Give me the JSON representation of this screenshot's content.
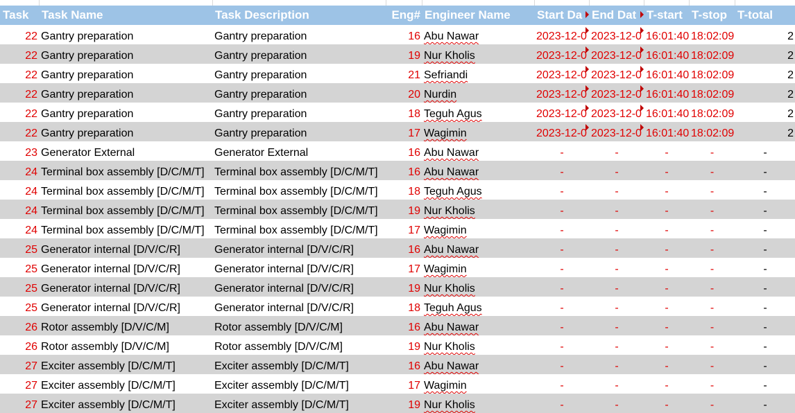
{
  "columns": [
    "Task",
    "Task Name",
    "Task Description",
    "Eng#",
    "Engineer Name",
    "Start Da",
    "End Dat",
    "T-start",
    "T-stop",
    "T-total"
  ],
  "rows": [
    [
      "22",
      "Gantry preparation",
      "Gantry preparation",
      "16",
      "Abu Nawar",
      "2023-12-0",
      "2023-12-0",
      "16:01:40",
      "18:02:09",
      "2"
    ],
    [
      "22",
      "Gantry preparation",
      "Gantry preparation",
      "19",
      "Nur Kholis",
      "2023-12-0",
      "2023-12-0",
      "16:01:40",
      "18:02:09",
      "2"
    ],
    [
      "22",
      "Gantry preparation",
      "Gantry preparation",
      "21",
      "Sefriandi",
      "2023-12-0",
      "2023-12-0",
      "16:01:40",
      "18:02:09",
      "2"
    ],
    [
      "22",
      "Gantry preparation",
      "Gantry preparation",
      "20",
      "Nurdin",
      "2023-12-0",
      "2023-12-0",
      "16:01:40",
      "18:02:09",
      "2"
    ],
    [
      "22",
      "Gantry preparation",
      "Gantry preparation",
      "18",
      "Teguh Agus",
      "2023-12-0",
      "2023-12-0",
      "16:01:40",
      "18:02:09",
      "2"
    ],
    [
      "22",
      "Gantry preparation",
      "Gantry preparation",
      "17",
      "Wagimin",
      "2023-12-0",
      "2023-12-0",
      "16:01:40",
      "18:02:09",
      "2"
    ],
    [
      "23",
      "Generator External",
      "Generator External",
      "16",
      "Abu Nawar",
      "-",
      "-",
      "-",
      "-",
      "-"
    ],
    [
      "24",
      "Terminal box assembly [D/C/M/T]",
      "Terminal box assembly [D/C/M/T]",
      "16",
      "Abu Nawar",
      "-",
      "-",
      "-",
      "-",
      "-"
    ],
    [
      "24",
      "Terminal box assembly [D/C/M/T]",
      "Terminal box assembly [D/C/M/T]",
      "18",
      "Teguh Agus",
      "-",
      "-",
      "-",
      "-",
      "-"
    ],
    [
      "24",
      "Terminal box assembly [D/C/M/T]",
      "Terminal box assembly [D/C/M/T]",
      "19",
      "Nur Kholis",
      "-",
      "-",
      "-",
      "-",
      "-"
    ],
    [
      "24",
      "Terminal box assembly [D/C/M/T]",
      "Terminal box assembly [D/C/M/T]",
      "17",
      "Wagimin",
      "-",
      "-",
      "-",
      "-",
      "-"
    ],
    [
      "25",
      "Generator internal [D/V/C/R]",
      "Generator internal [D/V/C/R]",
      "16",
      "Abu Nawar",
      "-",
      "-",
      "-",
      "-",
      "-"
    ],
    [
      "25",
      "Generator internal [D/V/C/R]",
      "Generator internal [D/V/C/R]",
      "17",
      "Wagimin",
      "-",
      "-",
      "-",
      "-",
      "-"
    ],
    [
      "25",
      "Generator internal [D/V/C/R]",
      "Generator internal [D/V/C/R]",
      "19",
      "Nur Kholis",
      "-",
      "-",
      "-",
      "-",
      "-"
    ],
    [
      "25",
      "Generator internal [D/V/C/R]",
      "Generator internal [D/V/C/R]",
      "18",
      "Teguh Agus",
      "-",
      "-",
      "-",
      "-",
      "-"
    ],
    [
      "26",
      "Rotor assembly [D/V/C/M]",
      "Rotor assembly [D/V/C/M]",
      "16",
      "Abu Nawar",
      "-",
      "-",
      "-",
      "-",
      "-"
    ],
    [
      "26",
      "Rotor assembly [D/V/C/M]",
      "Rotor assembly [D/V/C/M]",
      "19",
      "Nur Kholis",
      "-",
      "-",
      "-",
      "-",
      "-"
    ],
    [
      "27",
      "Exciter assembly [D/C/M/T]",
      "Exciter assembly [D/C/M/T]",
      "16",
      "Abu Nawar",
      "-",
      "-",
      "-",
      "-",
      "-"
    ],
    [
      "27",
      "Exciter assembly [D/C/M/T]",
      "Exciter assembly [D/C/M/T]",
      "17",
      "Wagimin",
      "-",
      "-",
      "-",
      "-",
      "-"
    ],
    [
      "27",
      "Exciter assembly [D/C/M/T]",
      "Exciter assembly [D/C/M/T]",
      "19",
      "Nur Kholis",
      "-",
      "-",
      "-",
      "-",
      "-"
    ]
  ],
  "colors": {
    "header_bg": "#9dc3e6",
    "band_bg": "#d4d4d4",
    "value_red": "#e00000",
    "flag": "#c00000"
  }
}
